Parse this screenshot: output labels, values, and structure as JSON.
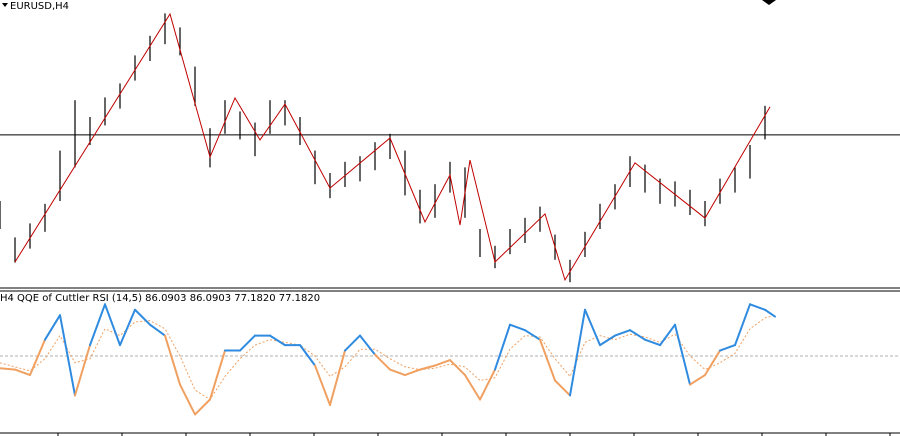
{
  "chart_data": [
    {
      "type": "ohlc",
      "title": "EURUSD,H4",
      "xlim": [
        0,
        180
      ],
      "ylim": [
        0,
        100
      ],
      "price_line": 53.6,
      "color": "#000000",
      "x": [
        0,
        3,
        6,
        9,
        12,
        15,
        18,
        21,
        24,
        27,
        30,
        33,
        36,
        39,
        42,
        45,
        48,
        51,
        54,
        57,
        60,
        63,
        66,
        69,
        72,
        75,
        78,
        81,
        84,
        87,
        90,
        93,
        96,
        99,
        102,
        105,
        108,
        111,
        114,
        117,
        120,
        123,
        126,
        129,
        132,
        135,
        138,
        141,
        144,
        147,
        150,
        153
      ],
      "highs": [
        30,
        17,
        22,
        29,
        48,
        66,
        60,
        67,
        72,
        82,
        89,
        97,
        92,
        78,
        56,
        66,
        62,
        58,
        66,
        66,
        60,
        48,
        40,
        44,
        46,
        51,
        54,
        48,
        34,
        36,
        44,
        42,
        20,
        14,
        20,
        24,
        28,
        18,
        9,
        19,
        29,
        36,
        46,
        43,
        38,
        37,
        34,
        30,
        38,
        42,
        50,
        64
      ],
      "lows": [
        20,
        8,
        13,
        19,
        30,
        42,
        50,
        57,
        63,
        73,
        80,
        86,
        82,
        64,
        42,
        54,
        52,
        46,
        54,
        57,
        50,
        36,
        31,
        35,
        37,
        41,
        45,
        32,
        22,
        24,
        33,
        24,
        10,
        6,
        11,
        15,
        19,
        9,
        1,
        10,
        20,
        27,
        35,
        33,
        29,
        28,
        25,
        21,
        29,
        33,
        38,
        52
      ],
      "zigzag": {
        "color": "#c00000",
        "x": [
          3,
          34,
          42,
          47,
          52,
          57,
          66,
          78,
          85,
          90,
          92,
          94,
          99,
          109,
          113,
          127,
          141,
          154
        ],
        "values": [
          8.2,
          96.8,
          45.7,
          66.8,
          51.8,
          64.6,
          34.6,
          52.5,
          22.5,
          39.3,
          21.4,
          44.6,
          8.2,
          25.4,
          1.8,
          43.6,
          23.9,
          63.6
        ]
      }
    },
    {
      "type": "qqe",
      "title": "H4 QQE of Cuttler RSI (14,5) 86.0903 86.0903 77.1820 77.1820",
      "xlim": [
        0,
        180
      ],
      "ylim": [
        0,
        100
      ],
      "level": 50,
      "up_color": "#2f8be0",
      "down_color": "#f0a060",
      "slow_color": "#f0a060",
      "level_color": "#b0b0b0",
      "x": [
        0,
        3,
        6,
        9,
        12,
        15,
        18,
        21,
        24,
        27,
        30,
        33,
        36,
        39,
        42,
        45,
        48,
        51,
        54,
        57,
        60,
        63,
        66,
        69,
        72,
        75,
        78,
        81,
        84,
        87,
        90,
        93,
        96,
        99,
        102,
        105,
        108,
        111,
        114,
        117,
        120,
        123,
        126,
        129,
        132,
        135,
        138,
        141,
        144,
        147,
        150,
        153,
        155
      ],
      "fast": [
        41,
        40,
        36,
        62,
        80,
        21,
        58,
        88,
        58,
        84,
        73,
        65,
        29,
        7,
        18,
        54,
        54,
        65,
        65,
        58,
        58,
        43,
        14,
        54,
        65,
        51,
        40,
        36,
        40,
        43,
        47,
        36,
        18,
        40,
        73,
        69,
        62,
        32,
        21,
        84,
        58,
        65,
        69,
        62,
        58,
        73,
        29,
        36,
        54,
        58,
        88,
        84,
        79
      ],
      "slow": [
        45,
        42,
        39,
        48,
        65,
        45,
        48,
        70,
        65,
        75,
        76,
        70,
        50,
        25,
        18,
        35,
        48,
        58,
        62,
        60,
        58,
        50,
        35,
        42,
        55,
        55,
        48,
        42,
        40,
        41,
        44,
        42,
        32,
        34,
        55,
        65,
        64,
        48,
        35,
        60,
        65,
        62,
        66,
        64,
        60,
        66,
        50,
        40,
        45,
        52,
        70,
        78,
        80
      ]
    }
  ]
}
